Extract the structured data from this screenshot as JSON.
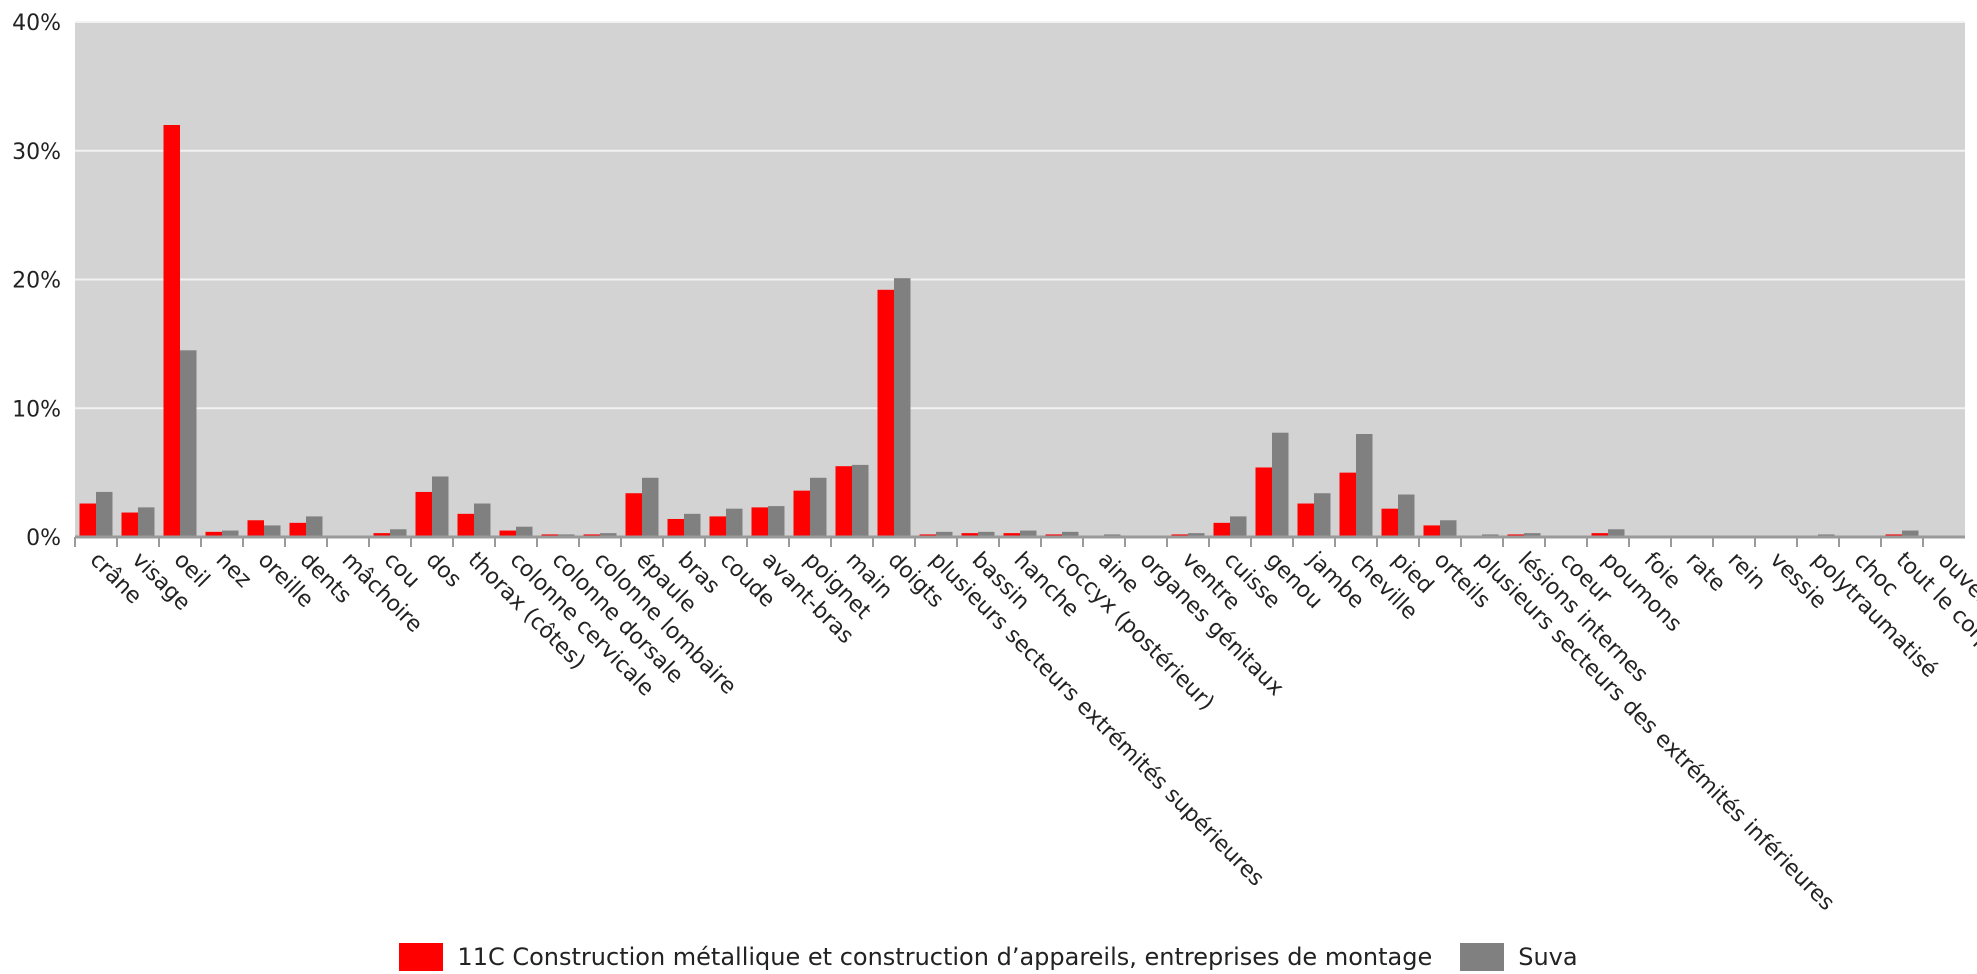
{
  "chart_data": {
    "type": "bar",
    "categories": [
      "crâne",
      "visage",
      "oeil",
      "nez",
      "oreille",
      "dents",
      "mâchoire",
      "cou",
      "dos",
      "thorax (côtes)",
      "colonne cervicale",
      "colonne dorsale",
      "colonne lombaire",
      "épaule",
      "bras",
      "coude",
      "avant-bras",
      "poignet",
      "main",
      "doigts",
      "plusieurs secteurs extrémités supérieures",
      "bassin",
      "hanche",
      "coccyx (postérieur)",
      "aine",
      "organes génitaux",
      "ventre",
      "cuisse",
      "genou",
      "jambe",
      "cheville",
      "pied",
      "orteils",
      "plusieurs secteurs des extrémités inférieures",
      "lésions internes",
      "coeur",
      "poumons",
      "foie",
      "rate",
      "rein",
      "vessie",
      "polytraumatisé",
      "choc",
      "tout le corps",
      "ouvert"
    ],
    "series": [
      {
        "name": "11C Construction métallique et construction d’appareils, entreprises de montage",
        "color": "#ff0000",
        "values": [
          2.6,
          1.9,
          32.0,
          0.4,
          1.3,
          1.1,
          0.1,
          0.3,
          3.5,
          1.8,
          0.5,
          0.2,
          0.2,
          3.4,
          1.4,
          1.6,
          2.3,
          3.6,
          5.5,
          19.2,
          0.2,
          0.3,
          0.3,
          0.2,
          0.1,
          0.0,
          0.2,
          1.1,
          5.4,
          2.6,
          5.0,
          2.2,
          0.9,
          0.1,
          0.2,
          0.0,
          0.3,
          0.0,
          0.0,
          0.0,
          0.0,
          0.1,
          0.0,
          0.2,
          0.0
        ]
      },
      {
        "name": "Suva",
        "color": "#808080",
        "values": [
          3.5,
          2.3,
          14.5,
          0.5,
          0.9,
          1.6,
          0.1,
          0.6,
          4.7,
          2.6,
          0.8,
          0.2,
          0.3,
          4.6,
          1.8,
          2.2,
          2.4,
          4.6,
          5.6,
          20.1,
          0.4,
          0.4,
          0.5,
          0.4,
          0.2,
          0.1,
          0.3,
          1.6,
          8.1,
          3.4,
          8.0,
          3.3,
          1.3,
          0.2,
          0.3,
          0.1,
          0.6,
          0.0,
          0.0,
          0.0,
          0.0,
          0.2,
          0.1,
          0.5,
          0.1
        ]
      }
    ],
    "ylim": [
      0,
      40
    ],
    "yticks": [
      "0%",
      "10%",
      "20%",
      "30%",
      "40%"
    ],
    "ytick_values": [
      0,
      10,
      20,
      30,
      40
    ],
    "grid": true,
    "legend_position": "bottom",
    "plot_background": "#d3d3d3"
  }
}
